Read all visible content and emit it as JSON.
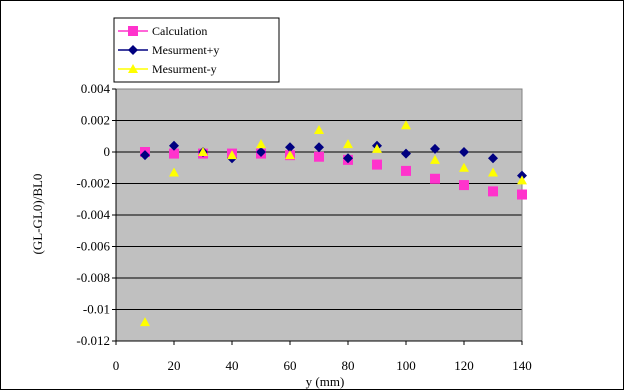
{
  "chart_data": {
    "type": "scatter",
    "title": "",
    "xlabel": "y (mm)",
    "ylabel": "(GL-GL0)/BL0",
    "xlim": [
      0,
      140
    ],
    "ylim": [
      -0.012,
      0.004
    ],
    "x_ticks": [
      "0",
      "20",
      "40",
      "60",
      "80",
      "100",
      "120",
      "140"
    ],
    "y_ticks": [
      "0.004",
      "0.002",
      "0",
      "-0.002",
      "-0.004",
      "-0.006",
      "-0.008",
      "-0.01",
      "-0.012"
    ],
    "grid": "horizontal",
    "plot_background": "#c0c0c0",
    "legend_position": "top-left",
    "series": [
      {
        "name": "Calculation",
        "marker": "square",
        "color": "#ff33cc",
        "x": [
          10,
          20,
          30,
          40,
          50,
          60,
          70,
          80,
          90,
          100,
          110,
          120,
          130,
          140
        ],
        "y": [
          0.0,
          -0.0001,
          -0.0001,
          -0.0001,
          -0.0001,
          -0.0002,
          -0.0003,
          -0.0005,
          -0.0008,
          -0.0012,
          -0.0017,
          -0.0021,
          -0.0025,
          -0.0027
        ]
      },
      {
        "name": "Mesurment+y",
        "marker": "diamond",
        "color": "#000080",
        "x": [
          10,
          20,
          30,
          40,
          50,
          60,
          70,
          80,
          90,
          100,
          110,
          120,
          130,
          140
        ],
        "y": [
          -0.0002,
          0.0004,
          0.0,
          -0.0004,
          0.0,
          0.0003,
          0.0003,
          -0.0004,
          0.0004,
          -0.0001,
          0.0002,
          0.0,
          -0.0004,
          -0.0015
        ]
      },
      {
        "name": "Mesurment-y",
        "marker": "triangle",
        "color": "#ffff00",
        "x": [
          10,
          20,
          30,
          40,
          50,
          60,
          70,
          80,
          90,
          100,
          110,
          120,
          130,
          140
        ],
        "y": [
          -0.0108,
          -0.0013,
          0.0,
          -0.0002,
          0.0005,
          -0.0002,
          0.0014,
          0.0005,
          0.0002,
          0.0017,
          -0.0005,
          -0.001,
          -0.0013,
          -0.0018
        ]
      }
    ]
  }
}
